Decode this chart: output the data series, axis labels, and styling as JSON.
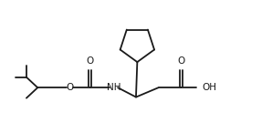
{
  "bg_color": "#ffffff",
  "line_color": "#1a1a1a",
  "line_width": 1.3,
  "text_color": "#1a1a1a",
  "font_size": 7.0,
  "xlim": [
    0,
    10
  ],
  "ylim": [
    0.5,
    5.8
  ]
}
